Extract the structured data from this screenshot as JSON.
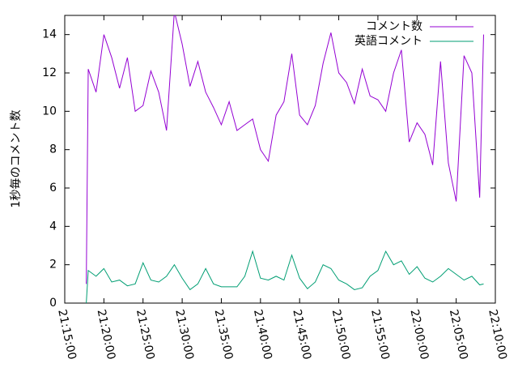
{
  "chart_data": {
    "type": "line",
    "ylabel": "1秒毎のコメント数",
    "x": [
      "21:17:45",
      "21:18:00",
      "21:19:00",
      "21:20:00",
      "21:21:00",
      "21:22:00",
      "21:23:00",
      "21:24:00",
      "21:25:00",
      "21:26:00",
      "21:27:00",
      "21:28:00",
      "21:29:00",
      "21:30:00",
      "21:31:00",
      "21:32:00",
      "21:33:00",
      "21:34:00",
      "21:35:00",
      "21:36:00",
      "21:37:00",
      "21:38:00",
      "21:39:00",
      "21:40:00",
      "21:41:00",
      "21:42:00",
      "21:43:00",
      "21:44:00",
      "21:45:00",
      "21:46:00",
      "21:47:00",
      "21:48:00",
      "21:49:00",
      "21:50:00",
      "21:51:00",
      "21:52:00",
      "21:53:00",
      "21:54:00",
      "21:55:00",
      "21:56:00",
      "21:57:00",
      "21:58:00",
      "21:59:00",
      "22:00:00",
      "22:01:00",
      "22:02:00",
      "22:03:00",
      "22:04:00",
      "22:05:00",
      "22:06:00",
      "22:07:00",
      "22:08:00",
      "22:08:30"
    ],
    "series": [
      {
        "name": "コメント数",
        "color": "#9400d3",
        "values": [
          1,
          12.2,
          11,
          14,
          12.8,
          11.2,
          12.8,
          10,
          10.3,
          12.1,
          11,
          9,
          15.2,
          13.5,
          11.3,
          12.6,
          11,
          10.2,
          9.3,
          10.5,
          9,
          9.3,
          9.6,
          8,
          7.4,
          9.8,
          10.5,
          13,
          9.8,
          9.3,
          10.3,
          12.5,
          14.1,
          12,
          11.5,
          10.4,
          12.2,
          10.8,
          10.6,
          10,
          12,
          13.2,
          8.4,
          9.4,
          8.8,
          7.2,
          12.6,
          7.3,
          5.3,
          12.9,
          12,
          5.5,
          14
        ]
      },
      {
        "name": "英語コメント",
        "color": "#009e73",
        "values": [
          0,
          1.7,
          1.4,
          1.8,
          1.1,
          1.2,
          0.9,
          1,
          2.1,
          1.2,
          1.1,
          1.4,
          2,
          1.3,
          0.7,
          1,
          1.8,
          1,
          0.85,
          0.85,
          0.85,
          1.4,
          2.7,
          1.3,
          1.2,
          1.4,
          1.2,
          2.5,
          1.3,
          0.75,
          1.1,
          2,
          1.8,
          1.2,
          1,
          0.7,
          0.8,
          1.4,
          1.7,
          2.7,
          2,
          2.2,
          1.5,
          1.9,
          1.3,
          1.1,
          1.4,
          1.8,
          1.5,
          1.2,
          1.4,
          0.95,
          1
        ]
      }
    ],
    "xlim": [
      "21:15:00",
      "22:10:00"
    ],
    "xticks": [
      "21:15:00",
      "21:20:00",
      "21:25:00",
      "21:30:00",
      "21:35:00",
      "21:40:00",
      "21:45:00",
      "21:50:00",
      "21:55:00",
      "22:00:00",
      "22:05:00",
      "22:10:00"
    ],
    "ylim": [
      0,
      15
    ],
    "yticks": [
      0,
      2,
      4,
      6,
      8,
      10,
      12,
      14
    ],
    "legend": "top-right"
  }
}
